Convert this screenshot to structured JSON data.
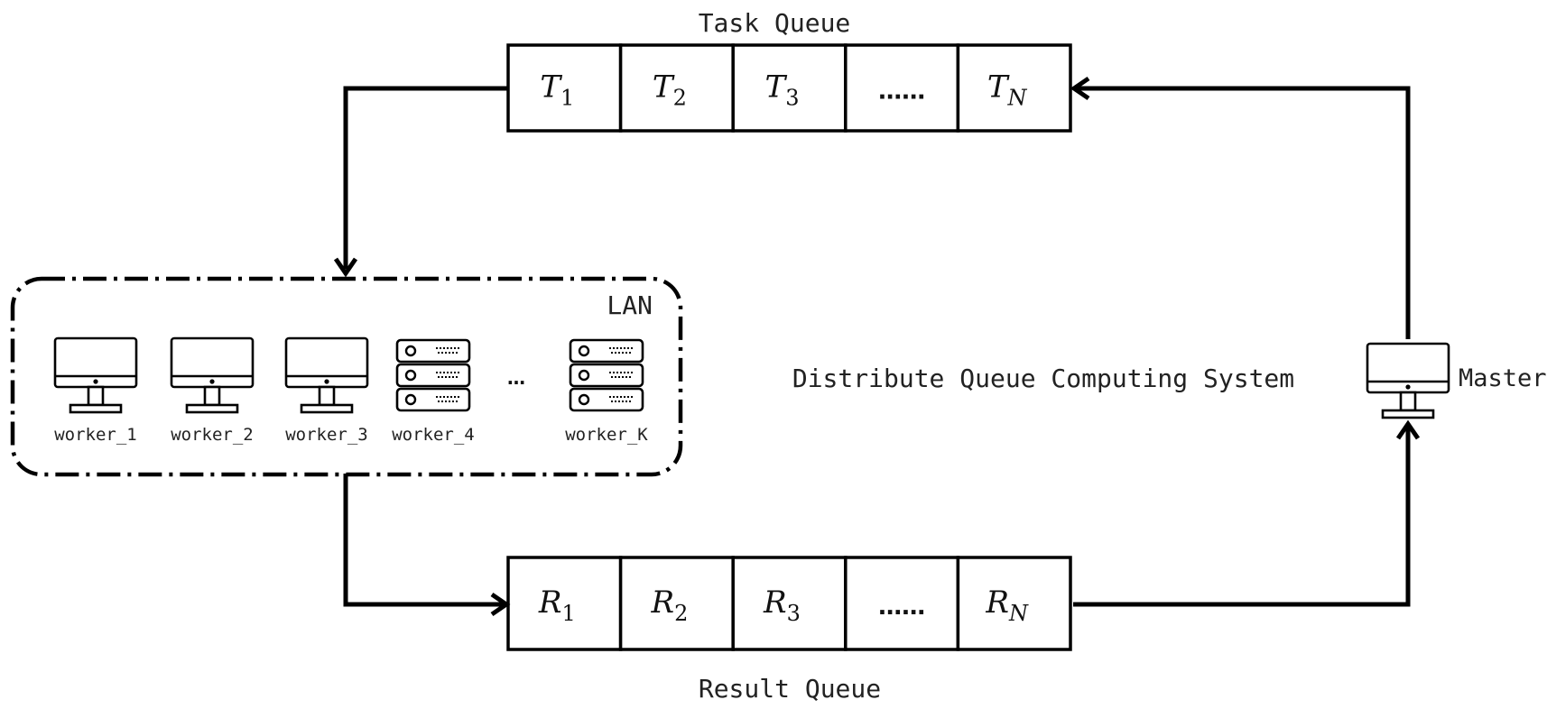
{
  "diagram": {
    "title": "Distribute Queue Computing System",
    "task_queue": {
      "label": "Task Queue",
      "cells": [
        {
          "sym": "T",
          "sub": "1"
        },
        {
          "sym": "T",
          "sub": "2"
        },
        {
          "sym": "T",
          "sub": "3"
        },
        {
          "sym": "……",
          "sub": ""
        },
        {
          "sym": "T",
          "sub": "N"
        }
      ]
    },
    "result_queue": {
      "label": "Result Queue",
      "cells": [
        {
          "sym": "R",
          "sub": "1"
        },
        {
          "sym": "R",
          "sub": "2"
        },
        {
          "sym": "R",
          "sub": "3"
        },
        {
          "sym": "……",
          "sub": ""
        },
        {
          "sym": "R",
          "sub": "N"
        }
      ]
    },
    "lan": {
      "label": "LAN",
      "ellipsis": "…",
      "workers": [
        {
          "name": "worker_1",
          "icon": "desktop-icon"
        },
        {
          "name": "worker_2",
          "icon": "desktop-icon"
        },
        {
          "name": "worker_3",
          "icon": "desktop-icon"
        },
        {
          "name": "worker_4",
          "icon": "server-icon"
        },
        {
          "name": "worker_K",
          "icon": "server-icon"
        }
      ]
    },
    "master": {
      "label": "Master",
      "icon": "desktop-icon"
    }
  }
}
